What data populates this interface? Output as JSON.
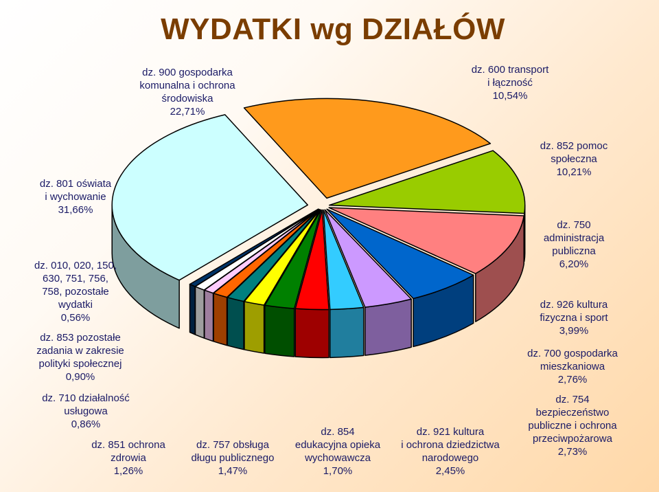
{
  "chart_data": {
    "type": "pie",
    "title": "WYDATKI wg DZIAŁÓW",
    "slices": [
      {
        "label": "dz. 900 gospodarka\nkomunalna  i ochrona\nśrodowiska\n22,71%",
        "value": 22.71,
        "color": "#ff9a1c"
      },
      {
        "label": "dz. 600 transport\ni łączność\n10,54%",
        "value": 10.54,
        "color": "#99cc00"
      },
      {
        "label": "dz. 852 pomoc\nspołeczna\n10,21%",
        "value": 10.21,
        "color": "#ff8080"
      },
      {
        "label": "dz. 750\nadministracja\npubliczna\n6,20%",
        "value": 6.2,
        "color": "#0066cc"
      },
      {
        "label": "dz. 926 kultura\nfizyczna i sport\n3,99%",
        "value": 3.99,
        "color": "#cc99ff"
      },
      {
        "label": "dz. 700 gospodarka\nmieszkaniowa\n2,76%",
        "value": 2.76,
        "color": "#33ccff"
      },
      {
        "label": "dz. 754\nbezpieczeństwo\npubliczne i ochrona\nprzeciwpożarowa\n2,73%",
        "value": 2.73,
        "color": "#ff0000"
      },
      {
        "label": "dz. 921 kultura\ni ochrona dziedzictwa\nnarodowego\n2,45%",
        "value": 2.45,
        "color": "#008000"
      },
      {
        "label": "dz. 854\nedukacyjna opieka\nwychowawcza\n1,70%",
        "value": 1.7,
        "color": "#ffff00"
      },
      {
        "label": "dz. 757 obsługa\ndługu publicznego\n1,47%",
        "value": 1.47,
        "color": "#008080"
      },
      {
        "label": "dz. 851 ochrona\nzdrowia\n1,26%",
        "value": 1.26,
        "color": "#ff6600"
      },
      {
        "label": "dz. 710 działalność\nusługowa\n0,86%",
        "value": 0.86,
        "color": "#ffccff"
      },
      {
        "label": "dz. 853 pozostałe\nzadania w zakresie\npolityki społecznej\n0,90%",
        "value": 0.9,
        "color": "#ffffff"
      },
      {
        "label": "dz. 010, 020, 150,\n630, 751, 756,\n758, pozostałe\nwydatki\n0,56%",
        "value": 0.56,
        "color": "#003366"
      },
      {
        "label": "dz. 801 oświata\ni wychowanie\n31,66%",
        "value": 31.66,
        "color": "#ccffff"
      }
    ]
  }
}
